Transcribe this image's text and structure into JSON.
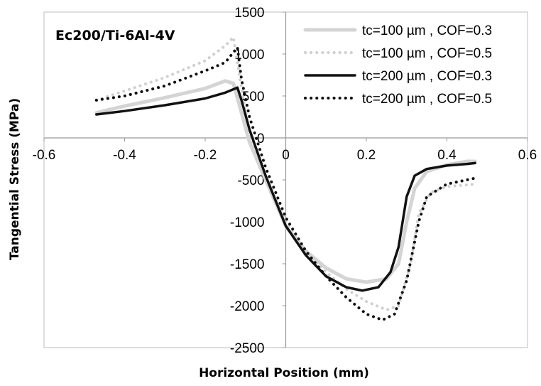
{
  "chart_data": {
    "type": "line",
    "annotation": "Ec200/Ti-6Al-4V",
    "xlabel": "Horizontal Position (mm)",
    "ylabel": "Tangential Stress (MPa)",
    "xlim": [
      -0.6,
      0.6
    ],
    "ylim": [
      -2500,
      1500
    ],
    "x_ticks": [
      "-0.6",
      "-0.4",
      "-0.2",
      "0",
      "0.2",
      "0.4",
      "0.6"
    ],
    "y_ticks": [
      "1500",
      "1000",
      "500",
      "0",
      "-500",
      "-1000",
      "-1500",
      "-2000",
      "-2500"
    ],
    "legend_position": "top-right",
    "grid": false,
    "series": [
      {
        "name": "tc=100 µm , COF=0.3",
        "color": "#d4d4d4",
        "style": "solid",
        "x": [
          -0.47,
          -0.4,
          -0.3,
          -0.2,
          -0.15,
          -0.13,
          -0.11,
          -0.09,
          -0.05,
          0.0,
          0.05,
          0.1,
          0.15,
          0.2,
          0.25,
          0.28,
          0.3,
          0.32,
          0.35,
          0.4,
          0.45,
          0.47
        ],
        "y": [
          300,
          380,
          480,
          590,
          680,
          650,
          300,
          -50,
          -500,
          -1050,
          -1350,
          -1550,
          -1680,
          -1720,
          -1680,
          -1500,
          -1000,
          -600,
          -400,
          -320,
          -280,
          -280
        ]
      },
      {
        "name": "tc=100 µm , COF=0.5",
        "color": "#cfcfcf",
        "style": "dotted",
        "x": [
          -0.47,
          -0.4,
          -0.3,
          -0.2,
          -0.15,
          -0.13,
          -0.11,
          -0.09,
          -0.05,
          0.0,
          0.05,
          0.1,
          0.15,
          0.2,
          0.25,
          0.28,
          0.31,
          0.33,
          0.36,
          0.4,
          0.45,
          0.47
        ],
        "y": [
          450,
          560,
          720,
          920,
          1100,
          1200,
          600,
          50,
          -450,
          -1000,
          -1350,
          -1600,
          -1800,
          -1950,
          -2050,
          -2000,
          -1500,
          -900,
          -650,
          -580,
          -560,
          -550
        ]
      },
      {
        "name": "tc=200 µm , COF=0.3",
        "color": "#111111",
        "style": "solid",
        "x": [
          -0.47,
          -0.4,
          -0.3,
          -0.2,
          -0.15,
          -0.12,
          -0.11,
          -0.09,
          -0.05,
          0.0,
          0.05,
          0.1,
          0.15,
          0.19,
          0.23,
          0.26,
          0.28,
          0.3,
          0.32,
          0.35,
          0.4,
          0.45,
          0.47
        ],
        "y": [
          280,
          320,
          390,
          470,
          540,
          600,
          450,
          100,
          -450,
          -1050,
          -1400,
          -1650,
          -1780,
          -1820,
          -1780,
          -1600,
          -1300,
          -700,
          -450,
          -370,
          -330,
          -310,
          -300
        ]
      },
      {
        "name": "tc=200 µm , COF=0.5",
        "color": "#111111",
        "style": "dotted",
        "x": [
          -0.47,
          -0.4,
          -0.3,
          -0.2,
          -0.15,
          -0.12,
          -0.11,
          -0.09,
          -0.05,
          0.0,
          0.05,
          0.1,
          0.15,
          0.2,
          0.24,
          0.27,
          0.3,
          0.33,
          0.35,
          0.4,
          0.45,
          0.47
        ],
        "y": [
          450,
          500,
          620,
          800,
          900,
          1080,
          700,
          250,
          -350,
          -950,
          -1350,
          -1650,
          -1900,
          -2100,
          -2170,
          -2100,
          -1700,
          -1000,
          -700,
          -550,
          -500,
          -480
        ]
      }
    ]
  }
}
